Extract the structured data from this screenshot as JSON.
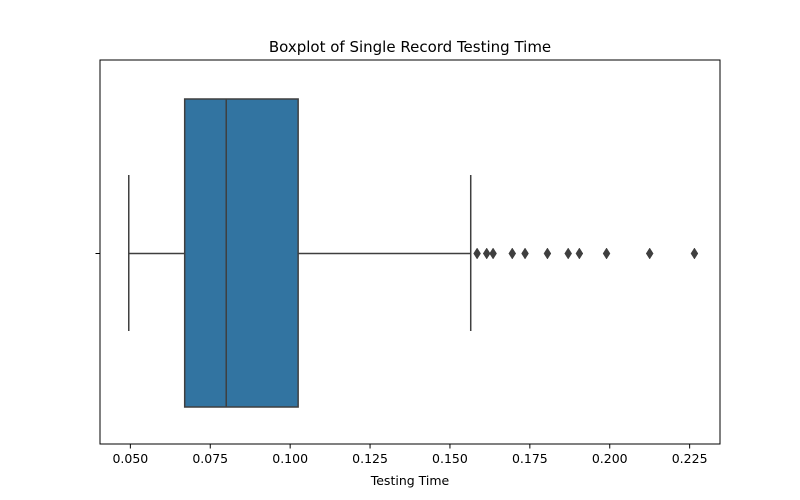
{
  "chart_data": {
    "type": "boxplot",
    "orientation": "horizontal",
    "title": "Boxplot of Single Record Testing Time",
    "xlabel": "Testing Time",
    "ylabel": "",
    "xlim": [
      0.0405,
      0.2345
    ],
    "xticks": [
      0.05,
      0.075,
      0.1,
      0.125,
      0.15,
      0.175,
      0.2,
      0.225
    ],
    "xtick_labels": [
      "0.050",
      "0.075",
      "0.100",
      "0.125",
      "0.150",
      "0.175",
      "0.200",
      "0.225"
    ],
    "grid": false,
    "legend": "none",
    "box": {
      "whisker_low": 0.0495,
      "q1": 0.067,
      "median": 0.08,
      "q3": 0.1025,
      "whisker_high": 0.1565
    },
    "outliers": [
      0.1585,
      0.1615,
      0.1635,
      0.1695,
      0.1735,
      0.1805,
      0.187,
      0.1905,
      0.199,
      0.2125,
      0.2265
    ],
    "colors": {
      "box_fill": "#3274a1",
      "line": "#3f3f3f",
      "axis": "#000000"
    }
  }
}
